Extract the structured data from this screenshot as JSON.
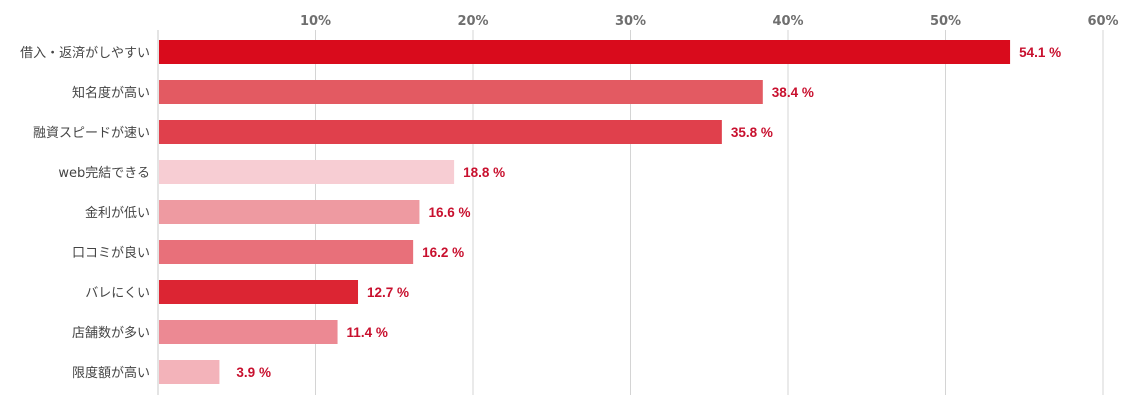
{
  "chart_data": {
    "type": "bar",
    "orientation": "horizontal",
    "categories": [
      "借入・返済がしやすい",
      "知名度が高い",
      "融資スピードが速い",
      "web完結できる",
      "金利が低い",
      "口コミが良い",
      "バレにくい",
      "店舗数が多い",
      "限度額が高い"
    ],
    "values": [
      54.1,
      38.4,
      35.8,
      18.8,
      16.6,
      16.2,
      12.7,
      11.4,
      3.9
    ],
    "value_labels": [
      "54.1 %",
      "38.4 %",
      "35.8 %",
      "18.8 %",
      "16.6 %",
      "16.2 %",
      "12.7 %",
      "11.4 %",
      "3.9 %"
    ],
    "bar_colors": [
      "#d90b1c",
      "#e35a62",
      "#e0404c",
      "#f7cdd3",
      "#ee9aa1",
      "#e8707a",
      "#dc2533",
      "#ec8993",
      "#f3b3ba"
    ],
    "xlim": [
      0,
      60
    ],
    "xticks": [
      10,
      20,
      30,
      40,
      50,
      60
    ],
    "xtick_labels": [
      "10%",
      "20%",
      "30%",
      "40%",
      "50%",
      "60%"
    ],
    "xaxis_position": "top",
    "grid": true,
    "title": "",
    "xlabel": "",
    "ylabel": ""
  }
}
